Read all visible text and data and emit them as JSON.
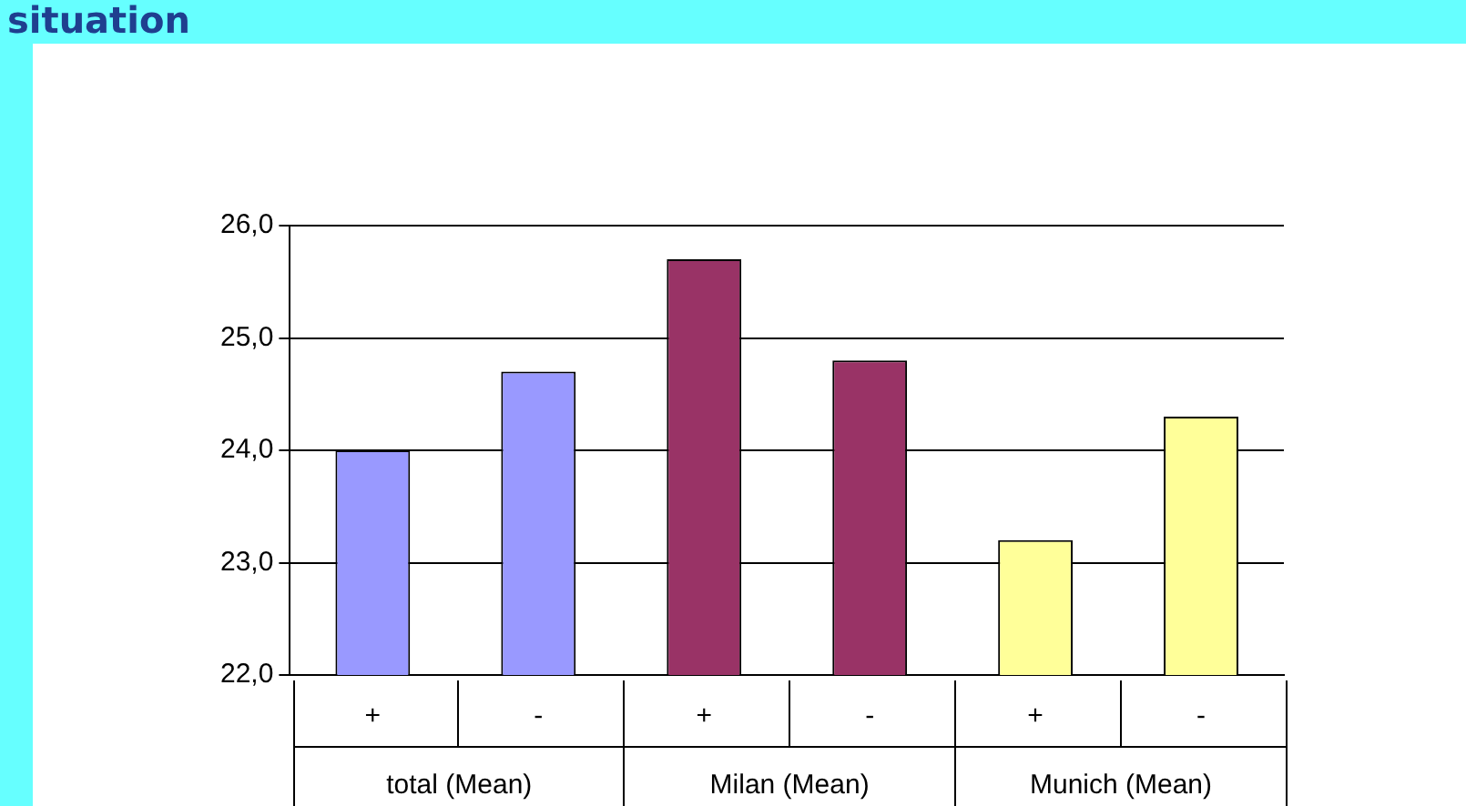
{
  "chart_data": {
    "type": "bar",
    "title": "situation",
    "categories": [
      "+",
      "-",
      "+",
      "-",
      "+",
      "-"
    ],
    "values": [
      24.0,
      24.7,
      25.7,
      24.8,
      23.2,
      24.3
    ],
    "colors": [
      "#9999ff",
      "#9999ff",
      "#993366",
      "#993366",
      "#ffff99",
      "#ffff99"
    ],
    "ylim": [
      22,
      26
    ],
    "yticks": [
      {
        "value": 22,
        "label": "22,0"
      },
      {
        "value": 23,
        "label": "23,0"
      },
      {
        "value": 24,
        "label": "24,0"
      },
      {
        "value": 25,
        "label": "25,0"
      },
      {
        "value": 26,
        "label": "26,0"
      }
    ],
    "grid": "y",
    "annotations": [
      "total (Mean)",
      "Milan (Mean)",
      "Munich (Mean)"
    ]
  }
}
